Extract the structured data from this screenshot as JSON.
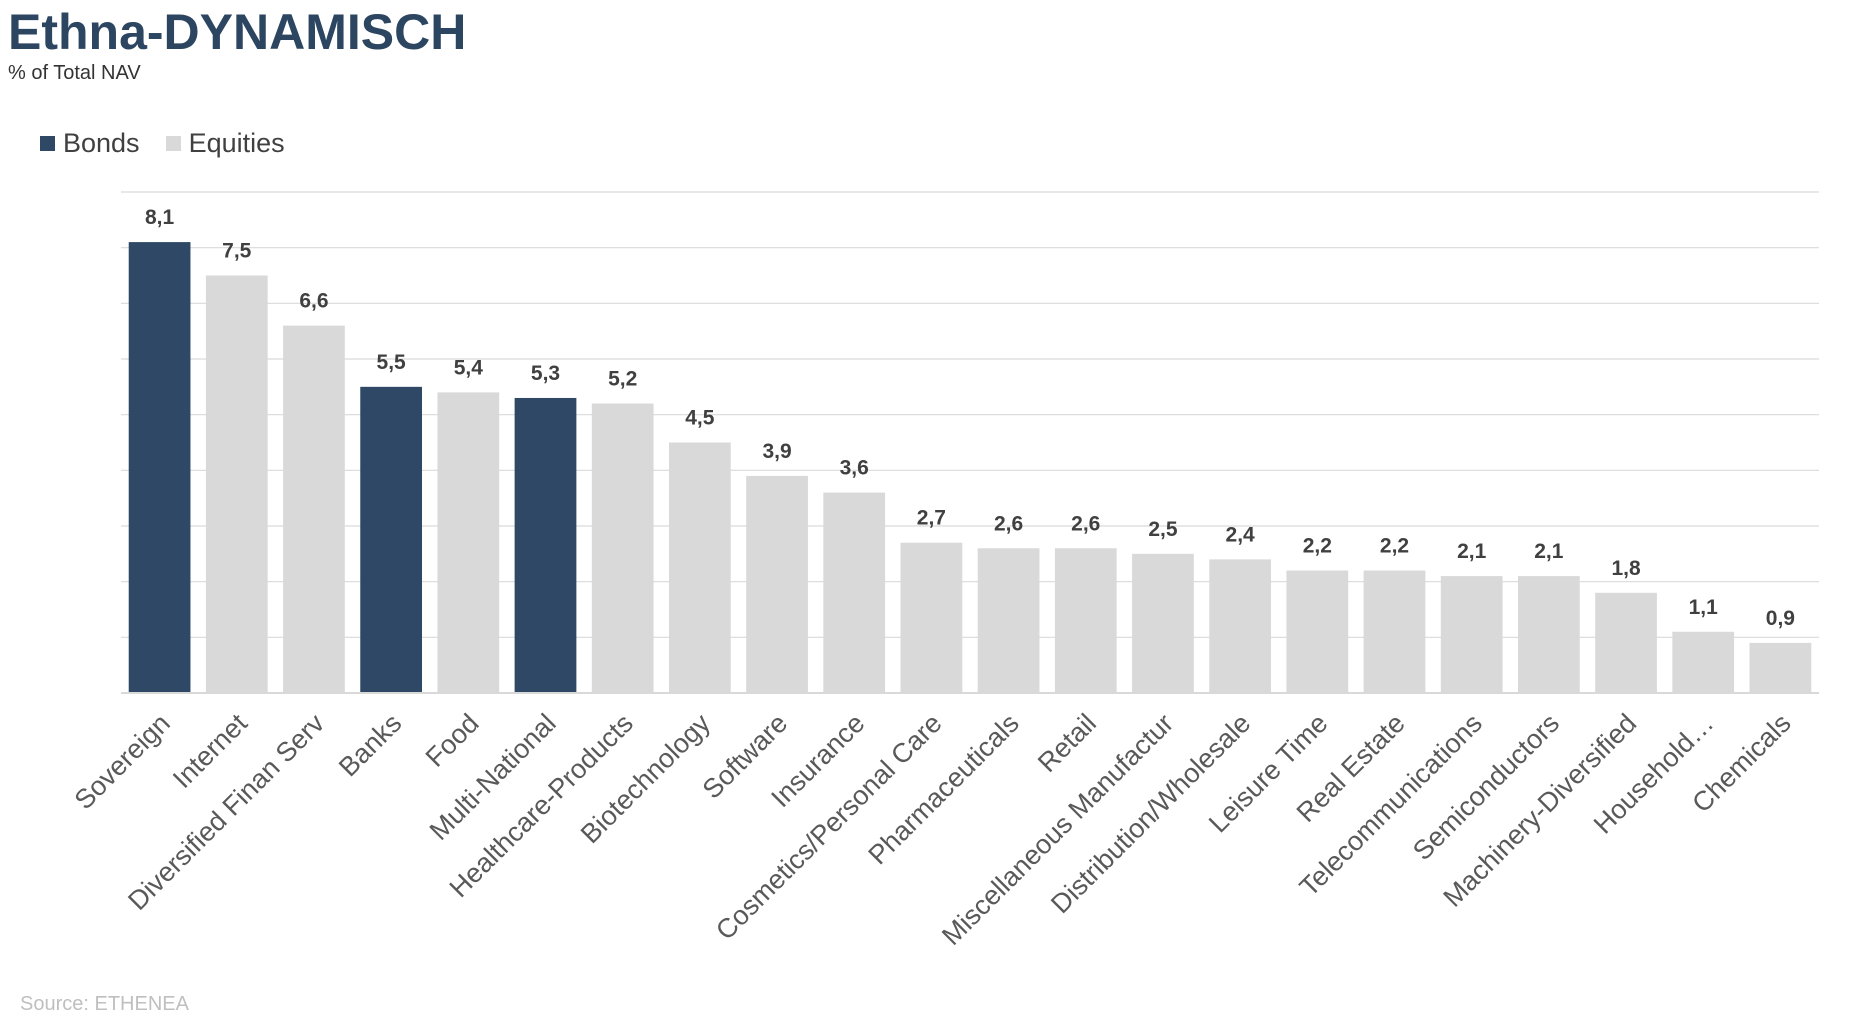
{
  "chart_data": {
    "type": "bar",
    "title": "Ethna-DYNAMISCH",
    "subtitle": "% of Total NAV",
    "categories": [
      "Sovereign",
      "Internet",
      "Diversified Finan Serv",
      "Banks",
      "Food",
      "Multi-National",
      "Healthcare-Products",
      "Biotechnology",
      "Software",
      "Insurance",
      "Cosmetics/Personal Care",
      "Pharmaceuticals",
      "Retail",
      "Miscellaneous Manufactur",
      "Distribution/Wholesale",
      "Leisure Time",
      "Real Estate",
      "Telecommunications",
      "Semiconductors",
      "Machinery-Diversified",
      "Household…",
      "Chemicals"
    ],
    "values": [
      8.1,
      7.5,
      6.6,
      5.5,
      5.4,
      5.3,
      5.2,
      4.5,
      3.9,
      3.6,
      2.7,
      2.6,
      2.6,
      2.5,
      2.4,
      2.2,
      2.2,
      2.1,
      2.1,
      1.8,
      1.1,
      0.9
    ],
    "value_labels": [
      "8,1",
      "7,5",
      "6,6",
      "5,5",
      "5,4",
      "5,3",
      "5,2",
      "4,5",
      "3,9",
      "3,6",
      "2,7",
      "2,6",
      "2,6",
      "2,5",
      "2,4",
      "2,2",
      "2,2",
      "2,1",
      "2,1",
      "1,8",
      "1,1",
      "0,9"
    ],
    "asset_class": [
      "Bonds",
      "Equities",
      "Equities",
      "Bonds",
      "Equities",
      "Bonds",
      "Equities",
      "Equities",
      "Equities",
      "Equities",
      "Equities",
      "Equities",
      "Equities",
      "Equities",
      "Equities",
      "Equities",
      "Equities",
      "Equities",
      "Equities",
      "Equities",
      "Equities",
      "Equities"
    ],
    "legend": [
      {
        "name": "Bonds",
        "color": "#2e4865"
      },
      {
        "name": "Equities",
        "color": "#d9d9d9"
      }
    ],
    "legend_position": "top-left",
    "ylim": [
      0,
      9
    ],
    "grid": true,
    "y_axis_tick_labels": false,
    "xlabel": "",
    "ylabel": ""
  },
  "source": "Source: ETHENEA",
  "colors": {
    "title": "#2c4661",
    "grid": "#d9d9d9",
    "value_label": "#404040",
    "category_label": "#595959"
  }
}
